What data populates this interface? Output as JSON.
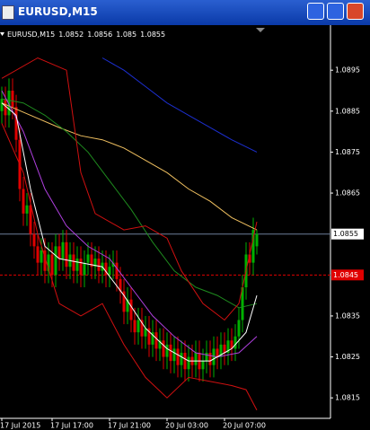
{
  "window": {
    "title": "EURUSD,M15"
  },
  "chart_data": {
    "type": "candlestick",
    "symbol_label": "EURUSD,M15",
    "categories": [
      "17 Jul 2015",
      null,
      null,
      null,
      null,
      null,
      null,
      null,
      null,
      null,
      null,
      null,
      null,
      null,
      "17 Jul 17:00",
      null,
      null,
      null,
      null,
      null,
      null,
      null,
      null,
      null,
      null,
      null,
      null,
      null,
      null,
      null,
      "17 Jul 21:00",
      null,
      null,
      null,
      null,
      null,
      null,
      null,
      null,
      null,
      null,
      null,
      null,
      null,
      null,
      null,
      "20 Jul 03:00",
      null,
      null,
      null,
      null,
      null,
      null,
      null,
      null,
      null,
      null,
      null,
      null,
      null,
      null,
      null,
      "20 Jul 07:00",
      null,
      null,
      null,
      null,
      null,
      null,
      null,
      null,
      null
    ],
    "open": [
      1.0885,
      1.0888,
      1.0884,
      1.089,
      1.0886,
      1.0878,
      1.0866,
      1.086,
      1.0862,
      1.0855,
      1.0852,
      1.0848,
      1.0851,
      1.0846,
      1.085,
      1.0845,
      1.0852,
      1.0849,
      1.0853,
      1.0847,
      1.085,
      1.0846,
      1.0849,
      1.0845,
      1.0848,
      1.085,
      1.0847,
      1.0849,
      1.0846,
      1.0848,
      1.0845,
      1.0847,
      1.0848,
      1.0844,
      1.0841,
      1.0836,
      1.0839,
      1.0834,
      1.0831,
      1.0834,
      1.083,
      1.0832,
      1.0828,
      1.0831,
      1.0827,
      1.0829,
      1.0825,
      1.0828,
      1.0824,
      1.0827,
      1.0823,
      1.0826,
      1.0822,
      1.0825,
      1.0823,
      1.0826,
      1.0822,
      1.0824,
      1.0826,
      1.0823,
      1.0827,
      1.0825,
      1.0828,
      1.0826,
      1.0829,
      1.0827,
      1.083,
      1.0834,
      1.0842,
      1.085,
      1.0848,
      1.0852
    ],
    "high": [
      1.0891,
      1.0891,
      1.0893,
      1.0893,
      1.0889,
      1.0881,
      1.0869,
      1.0865,
      1.0865,
      1.0858,
      1.0855,
      1.0854,
      1.0854,
      1.0853,
      1.0853,
      1.0855,
      1.0855,
      1.0856,
      1.0856,
      1.0853,
      1.0853,
      1.0852,
      1.0852,
      1.0851,
      1.0853,
      1.0853,
      1.0852,
      1.0852,
      1.0851,
      1.0851,
      1.085,
      1.0851,
      1.0851,
      1.0847,
      1.0844,
      1.0842,
      1.0842,
      1.0837,
      1.0837,
      1.0837,
      1.0835,
      1.0835,
      1.0834,
      1.0834,
      1.0832,
      1.0832,
      1.0831,
      1.0831,
      1.083,
      1.083,
      1.0829,
      1.0829,
      1.0828,
      1.0828,
      1.0829,
      1.0829,
      1.0827,
      1.0829,
      1.0829,
      1.083,
      1.083,
      1.0831,
      1.0831,
      1.0832,
      1.0832,
      1.0833,
      1.0837,
      1.0845,
      1.0853,
      1.0853,
      1.0859,
      1.0856
    ],
    "low": [
      1.0882,
      1.0881,
      1.0881,
      1.0883,
      1.0875,
      1.0863,
      1.0857,
      1.0857,
      1.0852,
      1.0849,
      1.0845,
      1.0845,
      1.0843,
      1.0843,
      1.0842,
      1.0842,
      1.0846,
      1.0846,
      1.0844,
      1.0844,
      1.0843,
      1.0843,
      1.0842,
      1.0842,
      1.0845,
      1.0844,
      1.0844,
      1.0843,
      1.0843,
      1.0842,
      1.0842,
      1.0844,
      1.0841,
      1.0838,
      1.0833,
      1.0833,
      1.0831,
      1.0828,
      1.0828,
      1.0827,
      1.0827,
      1.0825,
      1.0825,
      1.0824,
      1.0824,
      1.0822,
      1.0822,
      1.0821,
      1.0821,
      1.082,
      1.082,
      1.0819,
      1.0819,
      1.082,
      1.082,
      1.0819,
      1.0819,
      1.0821,
      1.082,
      1.082,
      1.0822,
      1.0822,
      1.0823,
      1.0823,
      1.0824,
      1.0824,
      1.0827,
      1.0831,
      1.0839,
      1.0845,
      1.0845,
      1.085
    ],
    "close": [
      1.0888,
      1.0884,
      1.089,
      1.0886,
      1.0878,
      1.0866,
      1.086,
      1.0862,
      1.0855,
      1.0852,
      1.0848,
      1.0851,
      1.0846,
      1.085,
      1.0845,
      1.0852,
      1.0849,
      1.0853,
      1.0847,
      1.085,
      1.0846,
      1.0849,
      1.0845,
      1.0848,
      1.085,
      1.0847,
      1.0849,
      1.0846,
      1.0848,
      1.0845,
      1.0847,
      1.0848,
      1.0844,
      1.0841,
      1.0836,
      1.0839,
      1.0834,
      1.0831,
      1.0834,
      1.083,
      1.0832,
      1.0828,
      1.0831,
      1.0827,
      1.0829,
      1.0825,
      1.0828,
      1.0824,
      1.0827,
      1.0823,
      1.0826,
      1.0822,
      1.0825,
      1.0823,
      1.0826,
      1.0822,
      1.0824,
      1.0826,
      1.0823,
      1.0827,
      1.0825,
      1.0828,
      1.0826,
      1.0829,
      1.0827,
      1.083,
      1.0834,
      1.0842,
      1.085,
      1.0848,
      1.0856,
      1.0855
    ],
    "up_color": "#00b000",
    "down_color": "#e00000",
    "indicators": [
      {
        "color": "#1c2fd0",
        "x": [
          28,
          34,
          40,
          46,
          52,
          58,
          64,
          71
        ],
        "values": [
          1.0898,
          1.0895,
          1.0891,
          1.0887,
          1.0884,
          1.0881,
          1.0878,
          1.0875
        ]
      },
      {
        "color": "#f0c060",
        "x": [
          0,
          8,
          16,
          22,
          28,
          34,
          40,
          46,
          52,
          58,
          64,
          71
        ],
        "values": [
          1.0887,
          1.0884,
          1.0881,
          1.0879,
          1.0878,
          1.0876,
          1.0873,
          1.087,
          1.0866,
          1.0863,
          1.0859,
          1.0856
        ]
      },
      {
        "color": "#1e8a1e",
        "x": [
          0,
          6,
          12,
          18,
          24,
          30,
          36,
          42,
          48,
          54,
          60,
          66,
          71
        ],
        "values": [
          1.0888,
          1.0887,
          1.0884,
          1.088,
          1.0875,
          1.0868,
          1.0861,
          1.0853,
          1.0846,
          1.0842,
          1.084,
          1.0837,
          1.0838
        ]
      },
      {
        "color": "#b040e0",
        "x": [
          0,
          6,
          12,
          18,
          24,
          30,
          36,
          42,
          48,
          54,
          60,
          66,
          71
        ],
        "values": [
          1.089,
          1.088,
          1.0866,
          1.0857,
          1.0852,
          1.0849,
          1.0842,
          1.0835,
          1.083,
          1.0826,
          1.0825,
          1.0826,
          1.083
        ]
      },
      {
        "color": "#ffffff",
        "x": [
          0,
          4,
          8,
          12,
          16,
          22,
          28,
          34,
          40,
          46,
          52,
          58,
          64,
          68,
          71
        ],
        "values": [
          1.0887,
          1.0884,
          1.0866,
          1.0852,
          1.0849,
          1.0848,
          1.0847,
          1.084,
          1.0832,
          1.0827,
          1.0824,
          1.0824,
          1.0827,
          1.0831,
          1.084
        ]
      },
      {
        "color": "#d01010",
        "x": [
          0,
          10,
          18,
          22,
          26,
          34,
          40,
          46,
          50,
          56,
          62,
          66,
          71
        ],
        "values": [
          1.0893,
          1.0898,
          1.0895,
          1.087,
          1.086,
          1.0856,
          1.0857,
          1.0854,
          1.0846,
          1.0838,
          1.0834,
          1.0838,
          1.0858
        ]
      },
      {
        "color": "#d01010",
        "x": [
          0,
          6,
          10,
          16,
          22,
          28,
          34,
          40,
          46,
          52,
          58,
          64,
          68,
          71
        ],
        "values": [
          1.0882,
          1.087,
          1.0855,
          1.0838,
          1.0835,
          1.0838,
          1.0828,
          1.082,
          1.0815,
          1.082,
          1.0819,
          1.0818,
          1.0817,
          1.0812
        ]
      }
    ],
    "hlines": [
      {
        "value": 1.0855,
        "color": "#6d7f9a",
        "dashed": false
      },
      {
        "value": 1.0845,
        "color": "#e00000",
        "dashed": true
      }
    ],
    "ylim": [
      1.081,
      1.0906
    ],
    "yticks": [
      1.0895,
      1.0885,
      1.0875,
      1.0865,
      1.0835,
      1.0825,
      1.0815
    ]
  }
}
